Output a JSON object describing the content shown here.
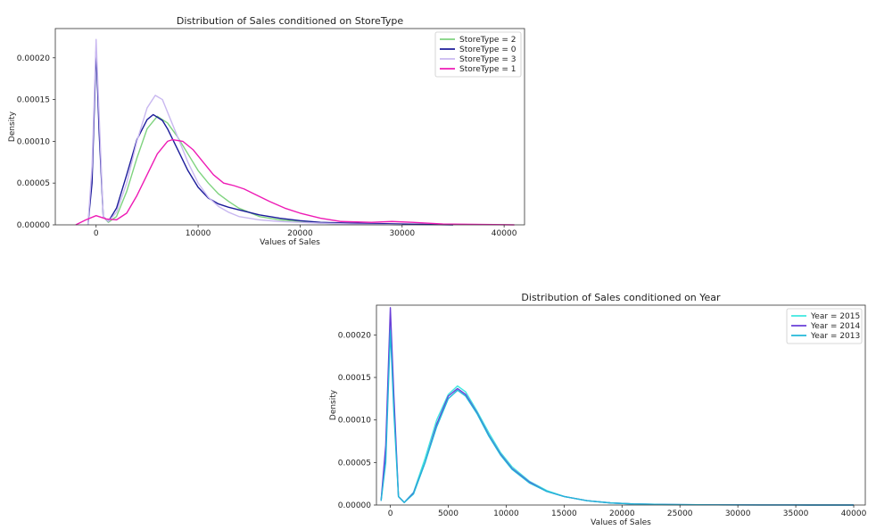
{
  "chart_data": [
    {
      "type": "line",
      "title": "Distribution of Sales conditioned on StoreType",
      "xlabel": "Values of Sales",
      "ylabel": "Density",
      "xlim": [
        -4000,
        42000
      ],
      "ylim": [
        0,
        0.000235
      ],
      "xticks": [
        0,
        10000,
        20000,
        30000,
        40000
      ],
      "xtick_labels": [
        "0",
        "10000",
        "20000",
        "30000",
        "40000"
      ],
      "yticks": [
        0,
        5e-05,
        0.0001,
        0.00015,
        0.0002
      ],
      "ytick_labels": [
        "0.00000",
        "0.00005",
        "0.00010",
        "0.00015",
        "0.00020"
      ],
      "grid": false,
      "legend_position": "top-right",
      "series": [
        {
          "name": "StoreType = 2",
          "color": "#7fd37f",
          "x": [
            -800,
            -400,
            0,
            300,
            700,
            1200,
            2000,
            3000,
            4000,
            5000,
            6000,
            7000,
            8000,
            9000,
            10000,
            11000,
            12000,
            13000,
            14000,
            15000,
            16000,
            18000,
            20000,
            22000,
            25000,
            30000
          ],
          "y": [
            0,
            6e-05,
            0.00021,
            0.00012,
            1e-05,
            3e-06,
            1e-05,
            4e-05,
            8e-05,
            0.000115,
            0.00013,
            0.000122,
            0.000105,
            8.5e-05,
            6.5e-05,
            5e-05,
            3.7e-05,
            2.8e-05,
            2e-05,
            1.5e-05,
            1e-05,
            6e-06,
            4e-06,
            2e-06,
            1e-06,
            0
          ]
        },
        {
          "name": "StoreType = 0",
          "color": "#1b1b9a",
          "x": [
            -800,
            -400,
            0,
            300,
            700,
            1200,
            2000,
            3000,
            4000,
            5000,
            5600,
            6500,
            7000,
            8000,
            9000,
            10000,
            11000,
            12000,
            13000,
            14000,
            16000,
            18000,
            20000,
            22000,
            25000,
            30000,
            35000
          ],
          "y": [
            0,
            5e-05,
            0.00021,
            0.00011,
            1e-05,
            4e-06,
            2e-05,
            6e-05,
            0.000102,
            0.000126,
            0.000132,
            0.000125,
            0.000115,
            9e-05,
            6.5e-05,
            4.5e-05,
            3.2e-05,
            2.5e-05,
            2.1e-05,
            1.8e-05,
            1.2e-05,
            8e-06,
            5e-06,
            3e-06,
            2e-06,
            1e-06,
            0
          ]
        },
        {
          "name": "StoreType = 3",
          "color": "#c9b8f0",
          "x": [
            -800,
            -400,
            0,
            300,
            700,
            1200,
            2000,
            3000,
            4000,
            5000,
            5800,
            6500,
            7000,
            8000,
            9000,
            10000,
            11000,
            12000,
            13000,
            14000,
            16000,
            18000,
            20000,
            22000,
            25000,
            30000
          ],
          "y": [
            0,
            7e-05,
            0.000222,
            0.00013,
            1e-05,
            4e-06,
            1.5e-05,
            5e-05,
            0.0001,
            0.00014,
            0.000155,
            0.00015,
            0.000135,
            0.000105,
            7.5e-05,
            5e-05,
            3.3e-05,
            2.2e-05,
            1.5e-05,
            1e-05,
            6e-06,
            4e-06,
            3e-06,
            2e-06,
            1e-06,
            0
          ]
        },
        {
          "name": "StoreType = 1",
          "color": "#ee1bb5",
          "x": [
            -2000,
            -1000,
            0,
            1000,
            2000,
            3000,
            4000,
            5000,
            6000,
            7000,
            7500,
            8500,
            9500,
            10500,
            11500,
            12500,
            13500,
            14500,
            15500,
            17000,
            18500,
            20000,
            22000,
            24000,
            27000,
            29000,
            31000,
            34000,
            38000,
            41000
          ],
          "y": [
            0,
            6e-06,
            1.1e-05,
            7e-06,
            6e-06,
            1.4e-05,
            3.5e-05,
            6e-05,
            8.5e-05,
            0.0001,
            0.000102,
            0.0001,
            9e-05,
            7.5e-05,
            6e-05,
            5e-05,
            4.7e-05,
            4.3e-05,
            3.7e-05,
            2.8e-05,
            2e-05,
            1.4e-05,
            8e-06,
            4e-06,
            3e-06,
            4e-06,
            3e-06,
            1e-06,
            5e-07,
            0
          ]
        }
      ]
    },
    {
      "type": "line",
      "title": "Distribution of Sales conditioned on Year",
      "xlabel": "Values of Sales",
      "ylabel": "Density",
      "xlim": [
        -1200,
        41000
      ],
      "ylim": [
        0,
        0.000235
      ],
      "xticks": [
        0,
        5000,
        10000,
        15000,
        20000,
        25000,
        30000,
        35000,
        40000
      ],
      "xtick_labels": [
        "0",
        "5000",
        "10000",
        "15000",
        "20000",
        "25000",
        "30000",
        "35000",
        "40000"
      ],
      "yticks": [
        0,
        5e-05,
        0.0001,
        0.00015,
        0.0002
      ],
      "ytick_labels": [
        "0.00000",
        "0.00005",
        "0.00010",
        "0.00015",
        "0.00020"
      ],
      "grid": false,
      "legend_position": "top-right",
      "series": [
        {
          "name": "Year = 2015",
          "color": "#3ee8e0",
          "x": [
            -800,
            -400,
            0,
            300,
            700,
            1200,
            2000,
            3000,
            4000,
            5000,
            5800,
            6500,
            7500,
            8500,
            9500,
            10500,
            12000,
            13500,
            15000,
            17000,
            19000,
            21000,
            24000,
            28000,
            32000,
            36000,
            40000
          ],
          "y": [
            5e-06,
            6e-05,
            0.00022,
            0.00012,
            1e-05,
            3e-06,
            1.5e-05,
            5.5e-05,
            0.0001,
            0.00013,
            0.00014,
            0.000133,
            0.00011,
            8.5e-05,
            6.2e-05,
            4.5e-05,
            2.8e-05,
            1.7e-05,
            1e-05,
            5e-06,
            2.5e-06,
            1.2e-06,
            6e-07,
            2e-07,
            1e-07,
            0,
            0
          ]
        },
        {
          "name": "Year = 2014",
          "color": "#6a3fd8",
          "x": [
            -800,
            -400,
            0,
            300,
            700,
            1200,
            2000,
            3000,
            4000,
            5000,
            5800,
            6500,
            7500,
            8500,
            9500,
            10500,
            12000,
            13500,
            15000,
            17000,
            19000,
            21000,
            24000,
            28000,
            32000,
            36000,
            40000
          ],
          "y": [
            5e-06,
            7e-05,
            0.000232,
            0.00013,
            1e-05,
            3e-06,
            1.4e-05,
            5e-05,
            9.5e-05,
            0.000128,
            0.000137,
            0.00013,
            0.000108,
            8.2e-05,
            6e-05,
            4.3e-05,
            2.7e-05,
            1.6e-05,
            1e-05,
            5e-06,
            2.5e-06,
            1.2e-06,
            6e-07,
            2e-07,
            1e-07,
            0,
            0
          ]
        },
        {
          "name": "Year = 2013",
          "color": "#22b8d8",
          "x": [
            -800,
            -400,
            0,
            300,
            700,
            1200,
            2000,
            3000,
            4000,
            5000,
            5800,
            6500,
            7500,
            8500,
            9500,
            10500,
            12000,
            13500,
            15000,
            17000,
            19000,
            21000,
            24000,
            28000,
            32000,
            36000,
            40000
          ],
          "y": [
            5e-06,
            5e-05,
            0.000205,
            0.00011,
            1e-05,
            3e-06,
            1.3e-05,
            5e-05,
            9.2e-05,
            0.000125,
            0.000135,
            0.000128,
            0.000107,
            8.1e-05,
            5.9e-05,
            4.2e-05,
            2.6e-05,
            1.6e-05,
            1e-05,
            5e-06,
            2.5e-06,
            1.2e-06,
            6e-07,
            2e-07,
            1e-07,
            0,
            0
          ]
        }
      ]
    }
  ]
}
